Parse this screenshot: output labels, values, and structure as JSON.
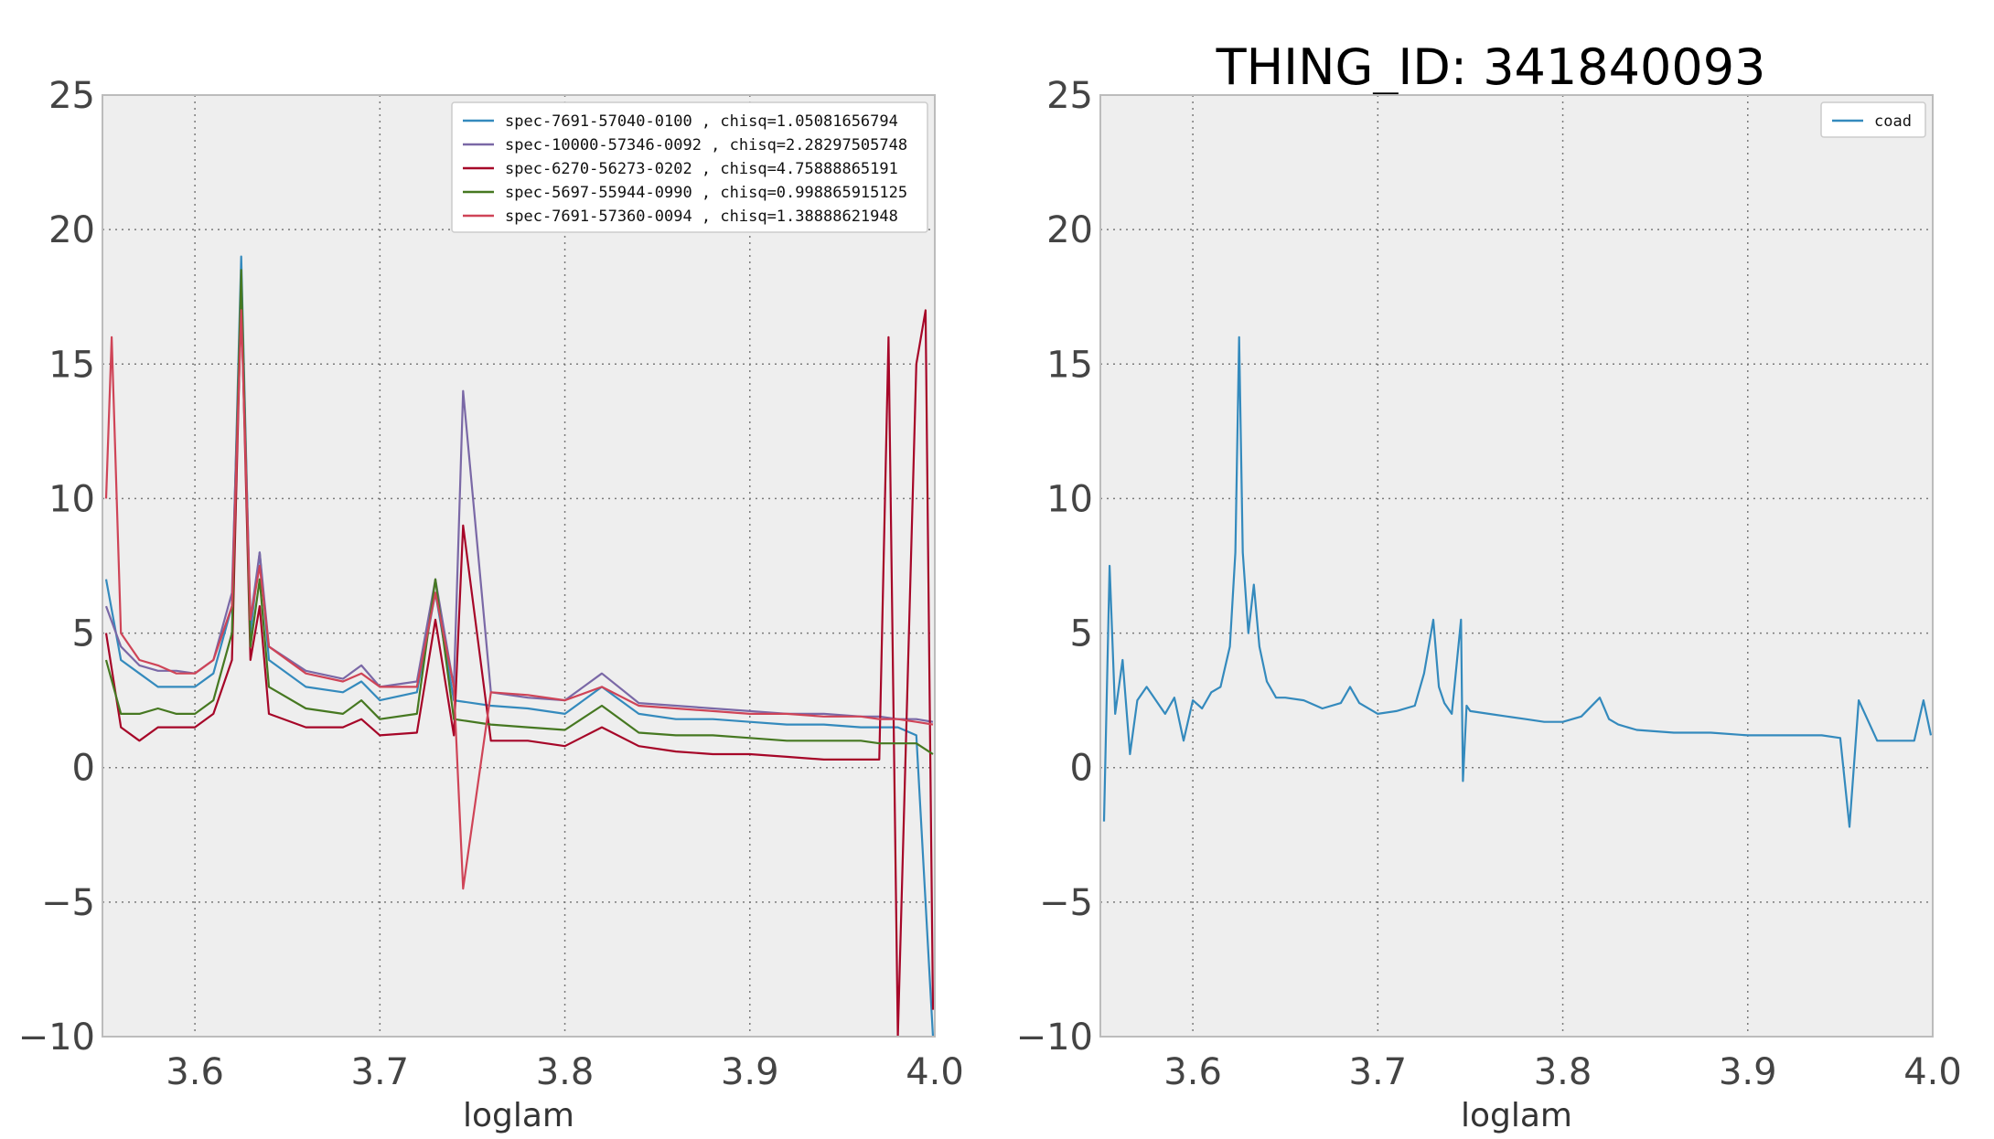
{
  "figure": {
    "title": "THING_ID: 341840093"
  },
  "chart_data": [
    {
      "type": "line",
      "xlabel": "loglam",
      "ylabel": "",
      "xlim": [
        3.55,
        4.0
      ],
      "ylim": [
        -10,
        25
      ],
      "xticks": [
        3.6,
        3.7,
        3.8,
        3.9,
        4.0
      ],
      "xtick_labels": [
        "3.6",
        "3.7",
        "3.8",
        "3.9",
        "4.0"
      ],
      "yticks": [
        -10,
        -5,
        0,
        5,
        10,
        15,
        20,
        25
      ],
      "ytick_labels": [
        "−10",
        "−5",
        "0",
        "5",
        "10",
        "15",
        "20",
        "25"
      ],
      "grid": true,
      "legend_position": "top-right",
      "series": [
        {
          "name": "spec-7691-57040-0100  , chisq=1.05081656794",
          "color": "#348ABD",
          "x": [
            3.552,
            3.56,
            3.57,
            3.58,
            3.59,
            3.6,
            3.61,
            3.62,
            3.625,
            3.63,
            3.635,
            3.64,
            3.66,
            3.68,
            3.69,
            3.7,
            3.72,
            3.73,
            3.74,
            3.76,
            3.78,
            3.8,
            3.82,
            3.84,
            3.86,
            3.88,
            3.9,
            3.92,
            3.94,
            3.96,
            3.97,
            3.98,
            3.99,
            3.999
          ],
          "y": [
            7.0,
            4.0,
            3.5,
            3.0,
            3.0,
            3.0,
            3.5,
            6.0,
            19.0,
            5.0,
            8.0,
            4.0,
            3.0,
            2.8,
            3.2,
            2.5,
            2.8,
            6.5,
            2.5,
            2.3,
            2.2,
            2.0,
            3.0,
            2.0,
            1.8,
            1.8,
            1.7,
            1.6,
            1.6,
            1.5,
            1.5,
            1.5,
            1.2,
            -10.0
          ]
        },
        {
          "name": "spec-10000-57346-0092  , chisq=2.28297505748",
          "color": "#7A68A6",
          "x": [
            3.552,
            3.56,
            3.57,
            3.58,
            3.59,
            3.6,
            3.61,
            3.62,
            3.625,
            3.63,
            3.635,
            3.64,
            3.66,
            3.68,
            3.69,
            3.7,
            3.72,
            3.73,
            3.74,
            3.745,
            3.76,
            3.78,
            3.8,
            3.82,
            3.84,
            3.86,
            3.88,
            3.9,
            3.92,
            3.94,
            3.96,
            3.97,
            3.98,
            3.99,
            3.999
          ],
          "y": [
            6.0,
            4.5,
            3.8,
            3.6,
            3.6,
            3.5,
            4.0,
            6.5,
            18.0,
            5.5,
            8.0,
            4.5,
            3.6,
            3.3,
            3.8,
            3.0,
            3.2,
            7.0,
            3.0,
            14.0,
            2.8,
            2.6,
            2.5,
            3.5,
            2.4,
            2.3,
            2.2,
            2.1,
            2.0,
            2.0,
            1.9,
            1.9,
            1.8,
            1.8,
            1.7
          ]
        },
        {
          "name": "spec-6270-56273-0202  , chisq=4.75888865191",
          "color": "#A60628",
          "x": [
            3.552,
            3.56,
            3.57,
            3.58,
            3.59,
            3.6,
            3.61,
            3.62,
            3.625,
            3.63,
            3.635,
            3.64,
            3.66,
            3.68,
            3.69,
            3.7,
            3.72,
            3.73,
            3.74,
            3.745,
            3.76,
            3.78,
            3.8,
            3.82,
            3.84,
            3.86,
            3.88,
            3.9,
            3.92,
            3.94,
            3.96,
            3.97,
            3.975,
            3.98,
            3.99,
            3.995,
            3.999
          ],
          "y": [
            5.0,
            1.5,
            1.0,
            1.5,
            1.5,
            1.5,
            2.0,
            4.0,
            17.5,
            4.0,
            6.0,
            2.0,
            1.5,
            1.5,
            1.8,
            1.2,
            1.3,
            5.5,
            1.2,
            9.0,
            1.0,
            1.0,
            0.8,
            1.5,
            0.8,
            0.6,
            0.5,
            0.5,
            0.4,
            0.3,
            0.3,
            0.3,
            16.0,
            -10.0,
            15.0,
            17.0,
            -9.0
          ]
        },
        {
          "name": "spec-5697-55944-0990  , chisq=0.998865915125",
          "color": "#467821",
          "x": [
            3.552,
            3.56,
            3.57,
            3.58,
            3.59,
            3.6,
            3.61,
            3.62,
            3.625,
            3.63,
            3.635,
            3.64,
            3.66,
            3.68,
            3.69,
            3.7,
            3.72,
            3.73,
            3.74,
            3.76,
            3.78,
            3.8,
            3.82,
            3.84,
            3.86,
            3.88,
            3.9,
            3.92,
            3.94,
            3.96,
            3.97,
            3.98,
            3.99,
            3.999
          ],
          "y": [
            4.0,
            2.0,
            2.0,
            2.2,
            2.0,
            2.0,
            2.5,
            5.0,
            18.5,
            4.5,
            7.0,
            3.0,
            2.2,
            2.0,
            2.5,
            1.8,
            2.0,
            7.0,
            1.8,
            1.6,
            1.5,
            1.4,
            2.3,
            1.3,
            1.2,
            1.2,
            1.1,
            1.0,
            1.0,
            1.0,
            0.9,
            0.9,
            0.9,
            0.5
          ]
        },
        {
          "name": "spec-7691-57360-0094  , chisq=1.38888621948",
          "color": "#CF4457",
          "x": [
            3.552,
            3.555,
            3.56,
            3.57,
            3.58,
            3.59,
            3.6,
            3.61,
            3.62,
            3.625,
            3.63,
            3.635,
            3.64,
            3.66,
            3.68,
            3.69,
            3.7,
            3.72,
            3.73,
            3.74,
            3.745,
            3.76,
            3.78,
            3.8,
            3.82,
            3.84,
            3.86,
            3.88,
            3.9,
            3.92,
            3.94,
            3.96,
            3.97,
            3.98,
            3.99,
            3.999
          ],
          "y": [
            10.0,
            16.0,
            5.0,
            4.0,
            3.8,
            3.5,
            3.5,
            4.0,
            6.0,
            17.0,
            5.5,
            7.5,
            4.5,
            3.5,
            3.2,
            3.5,
            3.0,
            3.0,
            6.5,
            3.0,
            -4.5,
            2.8,
            2.7,
            2.5,
            3.0,
            2.3,
            2.2,
            2.1,
            2.0,
            2.0,
            1.9,
            1.9,
            1.8,
            1.8,
            1.7,
            1.6
          ]
        }
      ]
    },
    {
      "type": "line",
      "xlabel": "loglam",
      "ylabel": "",
      "xlim": [
        3.55,
        4.0
      ],
      "ylim": [
        -10,
        25
      ],
      "xticks": [
        3.6,
        3.7,
        3.8,
        3.9,
        4.0
      ],
      "xtick_labels": [
        "3.6",
        "3.7",
        "3.8",
        "3.9",
        "4.0"
      ],
      "yticks": [
        -10,
        -5,
        0,
        5,
        10,
        15,
        20,
        25
      ],
      "ytick_labels": [
        "−10",
        "−5",
        "0",
        "5",
        "10",
        "15",
        "20",
        "25"
      ],
      "grid": true,
      "legend_position": "top-right",
      "series": [
        {
          "name": "coad",
          "color": "#348ABD",
          "x": [
            3.552,
            3.555,
            3.558,
            3.562,
            3.566,
            3.57,
            3.575,
            3.58,
            3.585,
            3.59,
            3.595,
            3.6,
            3.605,
            3.61,
            3.615,
            3.62,
            3.623,
            3.625,
            3.627,
            3.63,
            3.633,
            3.636,
            3.64,
            3.645,
            3.65,
            3.66,
            3.67,
            3.68,
            3.685,
            3.69,
            3.7,
            3.71,
            3.72,
            3.725,
            3.73,
            3.733,
            3.736,
            3.74,
            3.745,
            3.746,
            3.748,
            3.75,
            3.76,
            3.77,
            3.78,
            3.79,
            3.8,
            3.81,
            3.82,
            3.825,
            3.83,
            3.84,
            3.86,
            3.88,
            3.9,
            3.92,
            3.94,
            3.95,
            3.955,
            3.96,
            3.97,
            3.98,
            3.99,
            3.995,
            3.999
          ],
          "y": [
            -2.0,
            7.5,
            2.0,
            4.0,
            0.5,
            2.5,
            3.0,
            2.5,
            2.0,
            2.6,
            1.0,
            2.5,
            2.2,
            2.8,
            3.0,
            4.5,
            8.0,
            16.0,
            8.0,
            5.0,
            6.8,
            4.5,
            3.2,
            2.6,
            2.6,
            2.5,
            2.2,
            2.4,
            3.0,
            2.4,
            2.0,
            2.1,
            2.3,
            3.5,
            5.5,
            3.0,
            2.4,
            2.0,
            5.5,
            -0.5,
            2.3,
            2.1,
            2.0,
            1.9,
            1.8,
            1.7,
            1.7,
            1.9,
            2.6,
            1.8,
            1.6,
            1.4,
            1.3,
            1.3,
            1.2,
            1.2,
            1.2,
            1.1,
            -2.2,
            2.5,
            1.0,
            1.0,
            1.0,
            2.5,
            1.2
          ]
        }
      ]
    }
  ]
}
